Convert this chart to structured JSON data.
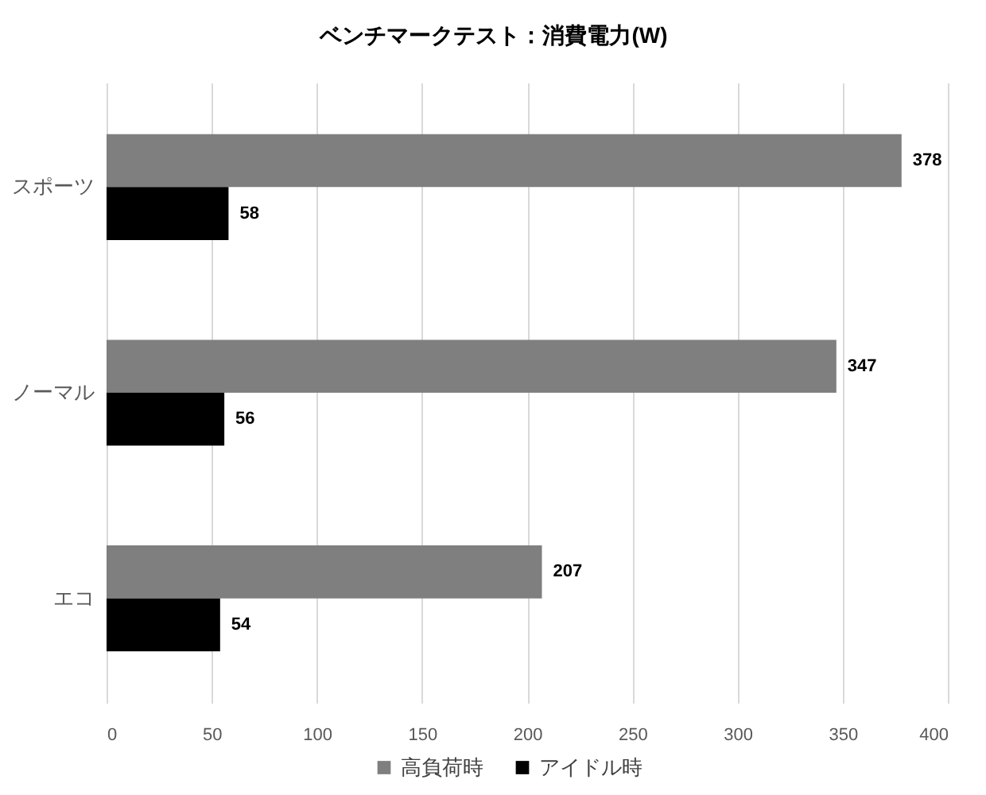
{
  "chart_data": {
    "type": "bar",
    "orientation": "horizontal",
    "title": "ベンチマークテスト：消費電力(W)",
    "categories": [
      "スポーツ",
      "ノーマル",
      "エコ"
    ],
    "series": [
      {
        "name": "高負荷時",
        "color": "#7f7f7f",
        "values": [
          378,
          347,
          207
        ]
      },
      {
        "name": "アイドル時",
        "color": "#000000",
        "values": [
          58,
          56,
          54
        ]
      }
    ],
    "xlim": [
      0,
      400
    ],
    "xticks": [
      0,
      50,
      100,
      150,
      200,
      250,
      300,
      350,
      400
    ],
    "grid": true,
    "legend": "bottom",
    "data_labels": true
  }
}
